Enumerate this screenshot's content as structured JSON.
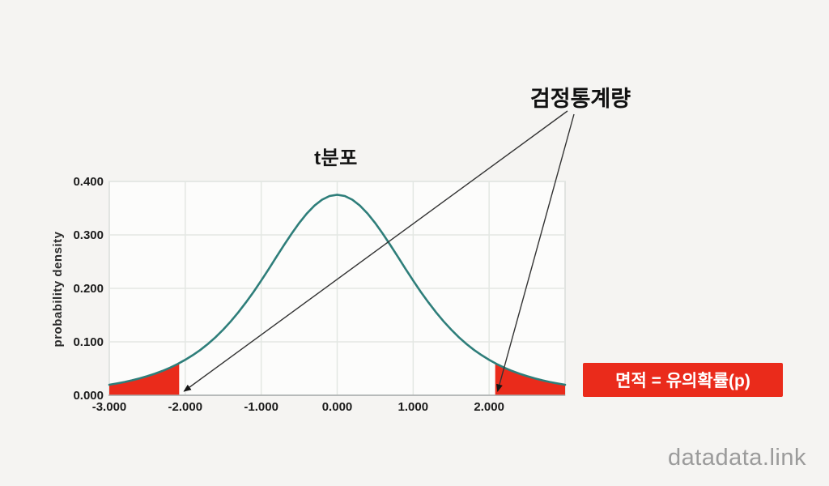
{
  "page": {
    "background": "#f5f4f2",
    "watermark": "datadata.link"
  },
  "chart_data": {
    "type": "area",
    "title": "t분포",
    "xlabel": "",
    "ylabel": "probability density",
    "xlim": [
      -3,
      3
    ],
    "ylim": [
      0,
      0.4
    ],
    "grid": true,
    "x_ticks": {
      "values": [
        -3,
        -2,
        -1,
        0,
        1,
        2
      ],
      "labels": [
        "-3.000",
        "-2.000",
        "-1.000",
        "0.000",
        "1.000",
        "2.000"
      ]
    },
    "y_ticks": {
      "values": [
        0,
        0.1,
        0.2,
        0.3,
        0.4
      ],
      "labels": [
        "0.000",
        "0.100",
        "0.200",
        "0.300",
        "0.400"
      ]
    },
    "curve": {
      "name": "t-distribution probability density",
      "color": "#2e7e7a",
      "peak": 0.375,
      "x": [
        -3.0,
        -2.9,
        -2.8,
        -2.7,
        -2.6,
        -2.5,
        -2.4,
        -2.3,
        -2.2,
        -2.1,
        -2.0,
        -1.9,
        -1.8,
        -1.7,
        -1.6,
        -1.5,
        -1.4,
        -1.3,
        -1.2,
        -1.1,
        -1.0,
        -0.9,
        -0.8,
        -0.7,
        -0.6,
        -0.5,
        -0.4,
        -0.3,
        -0.2,
        -0.1,
        0.0,
        0.1,
        0.2,
        0.3,
        0.4,
        0.5,
        0.6,
        0.7,
        0.8,
        0.9,
        1.0,
        1.1,
        1.2,
        1.3,
        1.4,
        1.5,
        1.6,
        1.7,
        1.8,
        1.9,
        2.0,
        2.1,
        2.2,
        2.3,
        2.4,
        2.5,
        2.6,
        2.7,
        2.8,
        2.9,
        3.0
      ],
      "y": [
        0.0197,
        0.0221,
        0.0248,
        0.028,
        0.0316,
        0.0357,
        0.0403,
        0.0456,
        0.0517,
        0.0585,
        0.0663,
        0.0751,
        0.085,
        0.0962,
        0.1088,
        0.1229,
        0.1384,
        0.1554,
        0.1739,
        0.1937,
        0.2147,
        0.2365,
        0.2588,
        0.2809,
        0.3023,
        0.3223,
        0.34,
        0.3547,
        0.3658,
        0.3727,
        0.375,
        0.3727,
        0.3658,
        0.3547,
        0.34,
        0.3223,
        0.3023,
        0.2809,
        0.2588,
        0.2365,
        0.2147,
        0.1937,
        0.1739,
        0.1554,
        0.1384,
        0.1229,
        0.1088,
        0.0962,
        0.085,
        0.0751,
        0.0663,
        0.0585,
        0.0517,
        0.0456,
        0.0403,
        0.0357,
        0.0316,
        0.028,
        0.0248,
        0.0221,
        0.0197
      ]
    },
    "critical_values": [
      -2.08,
      2.08
    ],
    "shaded_tails": {
      "color": "#ea2b1b",
      "regions": [
        [
          -3.0,
          -2.08
        ],
        [
          2.08,
          3.0
        ]
      ]
    },
    "annotation": {
      "label": "검정통계량",
      "targets": [
        -2.08,
        2.08
      ]
    },
    "legend_box": {
      "label": "면적 = 유의확률(p)",
      "bg": "#ea2b1b",
      "text_color": "#ffffff"
    },
    "colors": {
      "grid": "#e3e7e3",
      "plot_bg": "#fcfcfb",
      "axis": "#a7abab",
      "border": "#d9ddd9",
      "arrow": "#333333",
      "tick_text": "#1b1b1b"
    }
  }
}
